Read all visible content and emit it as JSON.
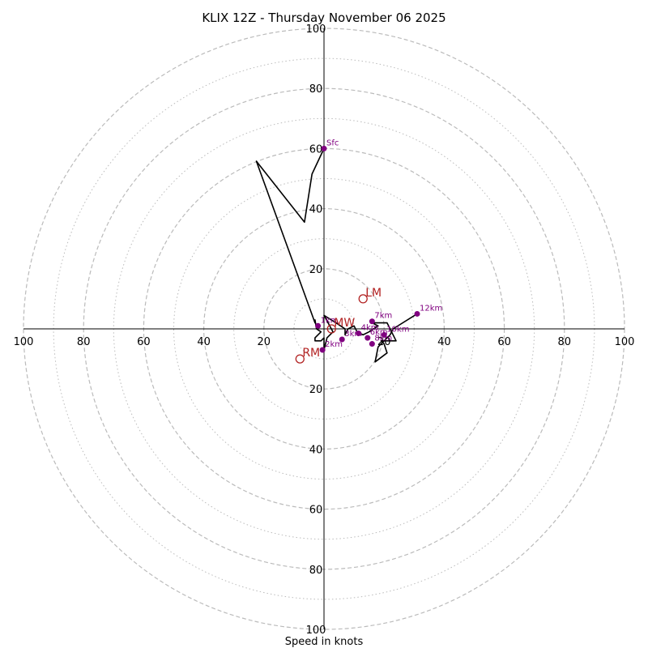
{
  "chart_data": {
    "type": "hodograph",
    "title": "KLIX 12Z - Thursday November 06 2025",
    "xlabel": "Speed in knots",
    "units": "knots",
    "max_speed": 100,
    "rings_major": [
      20,
      40,
      60,
      80,
      100
    ],
    "rings_minor": [
      10,
      30,
      50,
      70,
      90
    ],
    "tick_labels": {
      "top": [
        "20",
        "40",
        "60",
        "80",
        "100"
      ],
      "bottom": [
        "20",
        "40",
        "60",
        "80",
        "100"
      ],
      "left": [
        "100",
        "80",
        "60",
        "40",
        "20"
      ],
      "right": [
        "20",
        "40",
        "60",
        "80",
        "100"
      ]
    },
    "hodograph_uv": [
      [
        0,
        60
      ],
      [
        -4,
        51.5
      ],
      [
        -6.5,
        35.5
      ],
      [
        -22.5,
        55.8
      ],
      [
        -3,
        2
      ],
      [
        -3,
        3
      ],
      [
        -2.5,
        0
      ],
      [
        -1,
        -1
      ],
      [
        -3,
        -3
      ],
      [
        -3,
        -4
      ],
      [
        -1,
        -4
      ],
      [
        0,
        -3
      ],
      [
        0,
        -7
      ],
      [
        1,
        -3
      ],
      [
        3,
        -1
      ],
      [
        0,
        4.5
      ],
      [
        4,
        2
      ],
      [
        7,
        0
      ],
      [
        7,
        -2
      ],
      [
        8,
        0
      ],
      [
        10,
        1
      ],
      [
        11,
        -1
      ],
      [
        13,
        -2
      ],
      [
        15,
        -1
      ],
      [
        18,
        1
      ],
      [
        16,
        2
      ],
      [
        21,
        2
      ],
      [
        24,
        -4
      ],
      [
        19,
        -4
      ],
      [
        20,
        -5
      ],
      [
        21,
        -8
      ],
      [
        17,
        -11
      ],
      [
        18,
        -6
      ],
      [
        22,
        -2
      ],
      [
        23,
        0
      ],
      [
        31,
        5
      ]
    ],
    "height_markers": [
      {
        "label": "Sfc",
        "u": 0,
        "v": 60
      },
      {
        "label": "1km",
        "u": -2,
        "v": 1
      },
      {
        "label": "2km",
        "u": -0.5,
        "v": -7
      },
      {
        "label": "3km",
        "u": 6,
        "v": -3.5
      },
      {
        "label": "4km",
        "u": 11.5,
        "v": -1.5
      },
      {
        "label": "6km",
        "u": 14.5,
        "v": -3
      },
      {
        "label": "7km",
        "u": 16,
        "v": 2.5
      },
      {
        "label": "8km",
        "u": 16,
        "v": -5
      },
      {
        "label": "10km",
        "u": 20,
        "v": -2
      },
      {
        "label": "12km",
        "u": 31,
        "v": 5
      }
    ],
    "storm_motion": [
      {
        "label": "LM",
        "u": 13,
        "v": 10
      },
      {
        "label": "MW",
        "u": 2.5,
        "v": 0
      },
      {
        "label": "RM",
        "u": -8,
        "v": -10
      }
    ]
  },
  "colors": {
    "hodograph_line": "#000000",
    "height_marker": "#800080",
    "storm_motion": "#b22222",
    "grid": "#bbbbbb"
  }
}
